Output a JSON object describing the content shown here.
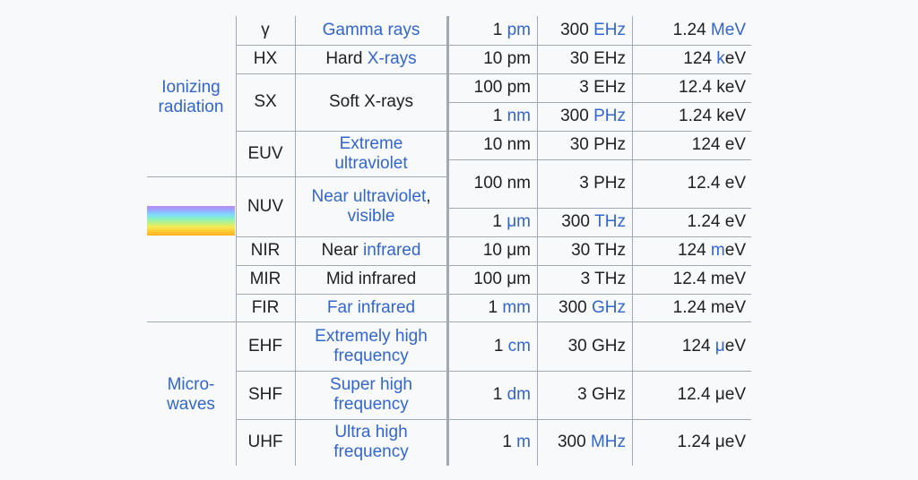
{
  "groups": {
    "ionizing": "Ionizing radiation",
    "ionizing_l1": "Ionizing",
    "ionizing_l2": "radiation",
    "micro_l1": "Micro-",
    "micro_l2": "waves"
  },
  "rows": {
    "gamma": {
      "abbr": "γ",
      "name": "Gamma rays",
      "wl_num": "1",
      "wl_unit": "pm",
      "fr_num": "300",
      "fr_unit": "EHz",
      "en_num": "1.24",
      "en_unit": "MeV"
    },
    "hx": {
      "abbr": "HX",
      "name_pre": "Hard ",
      "name_link": "X-rays",
      "wl": "10 pm",
      "fr": "30 EHz",
      "en_num": "124 ",
      "en_unit": "k",
      "en_post": "eV"
    },
    "sx": {
      "abbr": "SX",
      "name": "Soft X-rays"
    },
    "sx1": {
      "wl": "100 pm",
      "fr": "3 EHz",
      "en": "12.4 keV"
    },
    "sx2": {
      "wl_num": "1",
      "wl_unit": "nm",
      "fr_num": "300",
      "fr_unit": "PHz",
      "en": "1.24 keV"
    },
    "euv": {
      "abbr": "EUV",
      "name_l1": "Extreme",
      "name_l2": "ultraviolet",
      "wl": "10 nm",
      "fr": "30 PHz",
      "en": "124 eV"
    },
    "euv_nuv": {
      "wl": "100 nm",
      "fr": "3 PHz",
      "en": "12.4 eV"
    },
    "nuv": {
      "abbr": "NUV",
      "name_l1_link": "Near ultraviolet",
      "name_l1_post": ",",
      "name_l2": "visible"
    },
    "vis": {
      "wl_num": "1",
      "wl_unit": "μm",
      "fr_num": "300",
      "fr_unit": "THz",
      "en": "1.24 eV"
    },
    "nir": {
      "abbr": "NIR",
      "name_pre": "Near ",
      "name_link": "infrared",
      "wl": "10 μm",
      "fr": "30 THz",
      "en_num": "124 ",
      "en_unit": "m",
      "en_post": "eV"
    },
    "mir": {
      "abbr": "MIR",
      "name": "Mid infrared",
      "wl": "100 μm",
      "fr": "3 THz",
      "en": "12.4 meV"
    },
    "fir": {
      "abbr": "FIR",
      "name": "Far infrared",
      "wl_num": "1",
      "wl_unit": "mm",
      "fr_num": "300",
      "fr_unit": "GHz",
      "en": "1.24 meV"
    },
    "ehf": {
      "abbr": "EHF",
      "name_l1": "Extremely high",
      "name_l2": "frequency",
      "wl_num": "1",
      "wl_unit": "cm",
      "fr": "30 GHz",
      "en_num": "124 ",
      "en_unit": "μ",
      "en_post": "eV"
    },
    "shf": {
      "abbr": "SHF",
      "name_l1": "Super high",
      "name_l2": "frequency",
      "wl_num": "1",
      "wl_unit": "dm",
      "fr": "3 GHz",
      "en": "12.4 μeV"
    },
    "uhf": {
      "abbr": "UHF",
      "name_l1": "Ultra high",
      "name_l2": "frequency",
      "wl_num": "1",
      "wl_unit": "m",
      "fr_num": "300",
      "fr_unit": "MHz",
      "en": "1.24 μeV"
    }
  },
  "colors": {
    "link": "#3366cc",
    "text": "#202122",
    "border": "#a2a9b1",
    "background": "#f8f9fa"
  }
}
